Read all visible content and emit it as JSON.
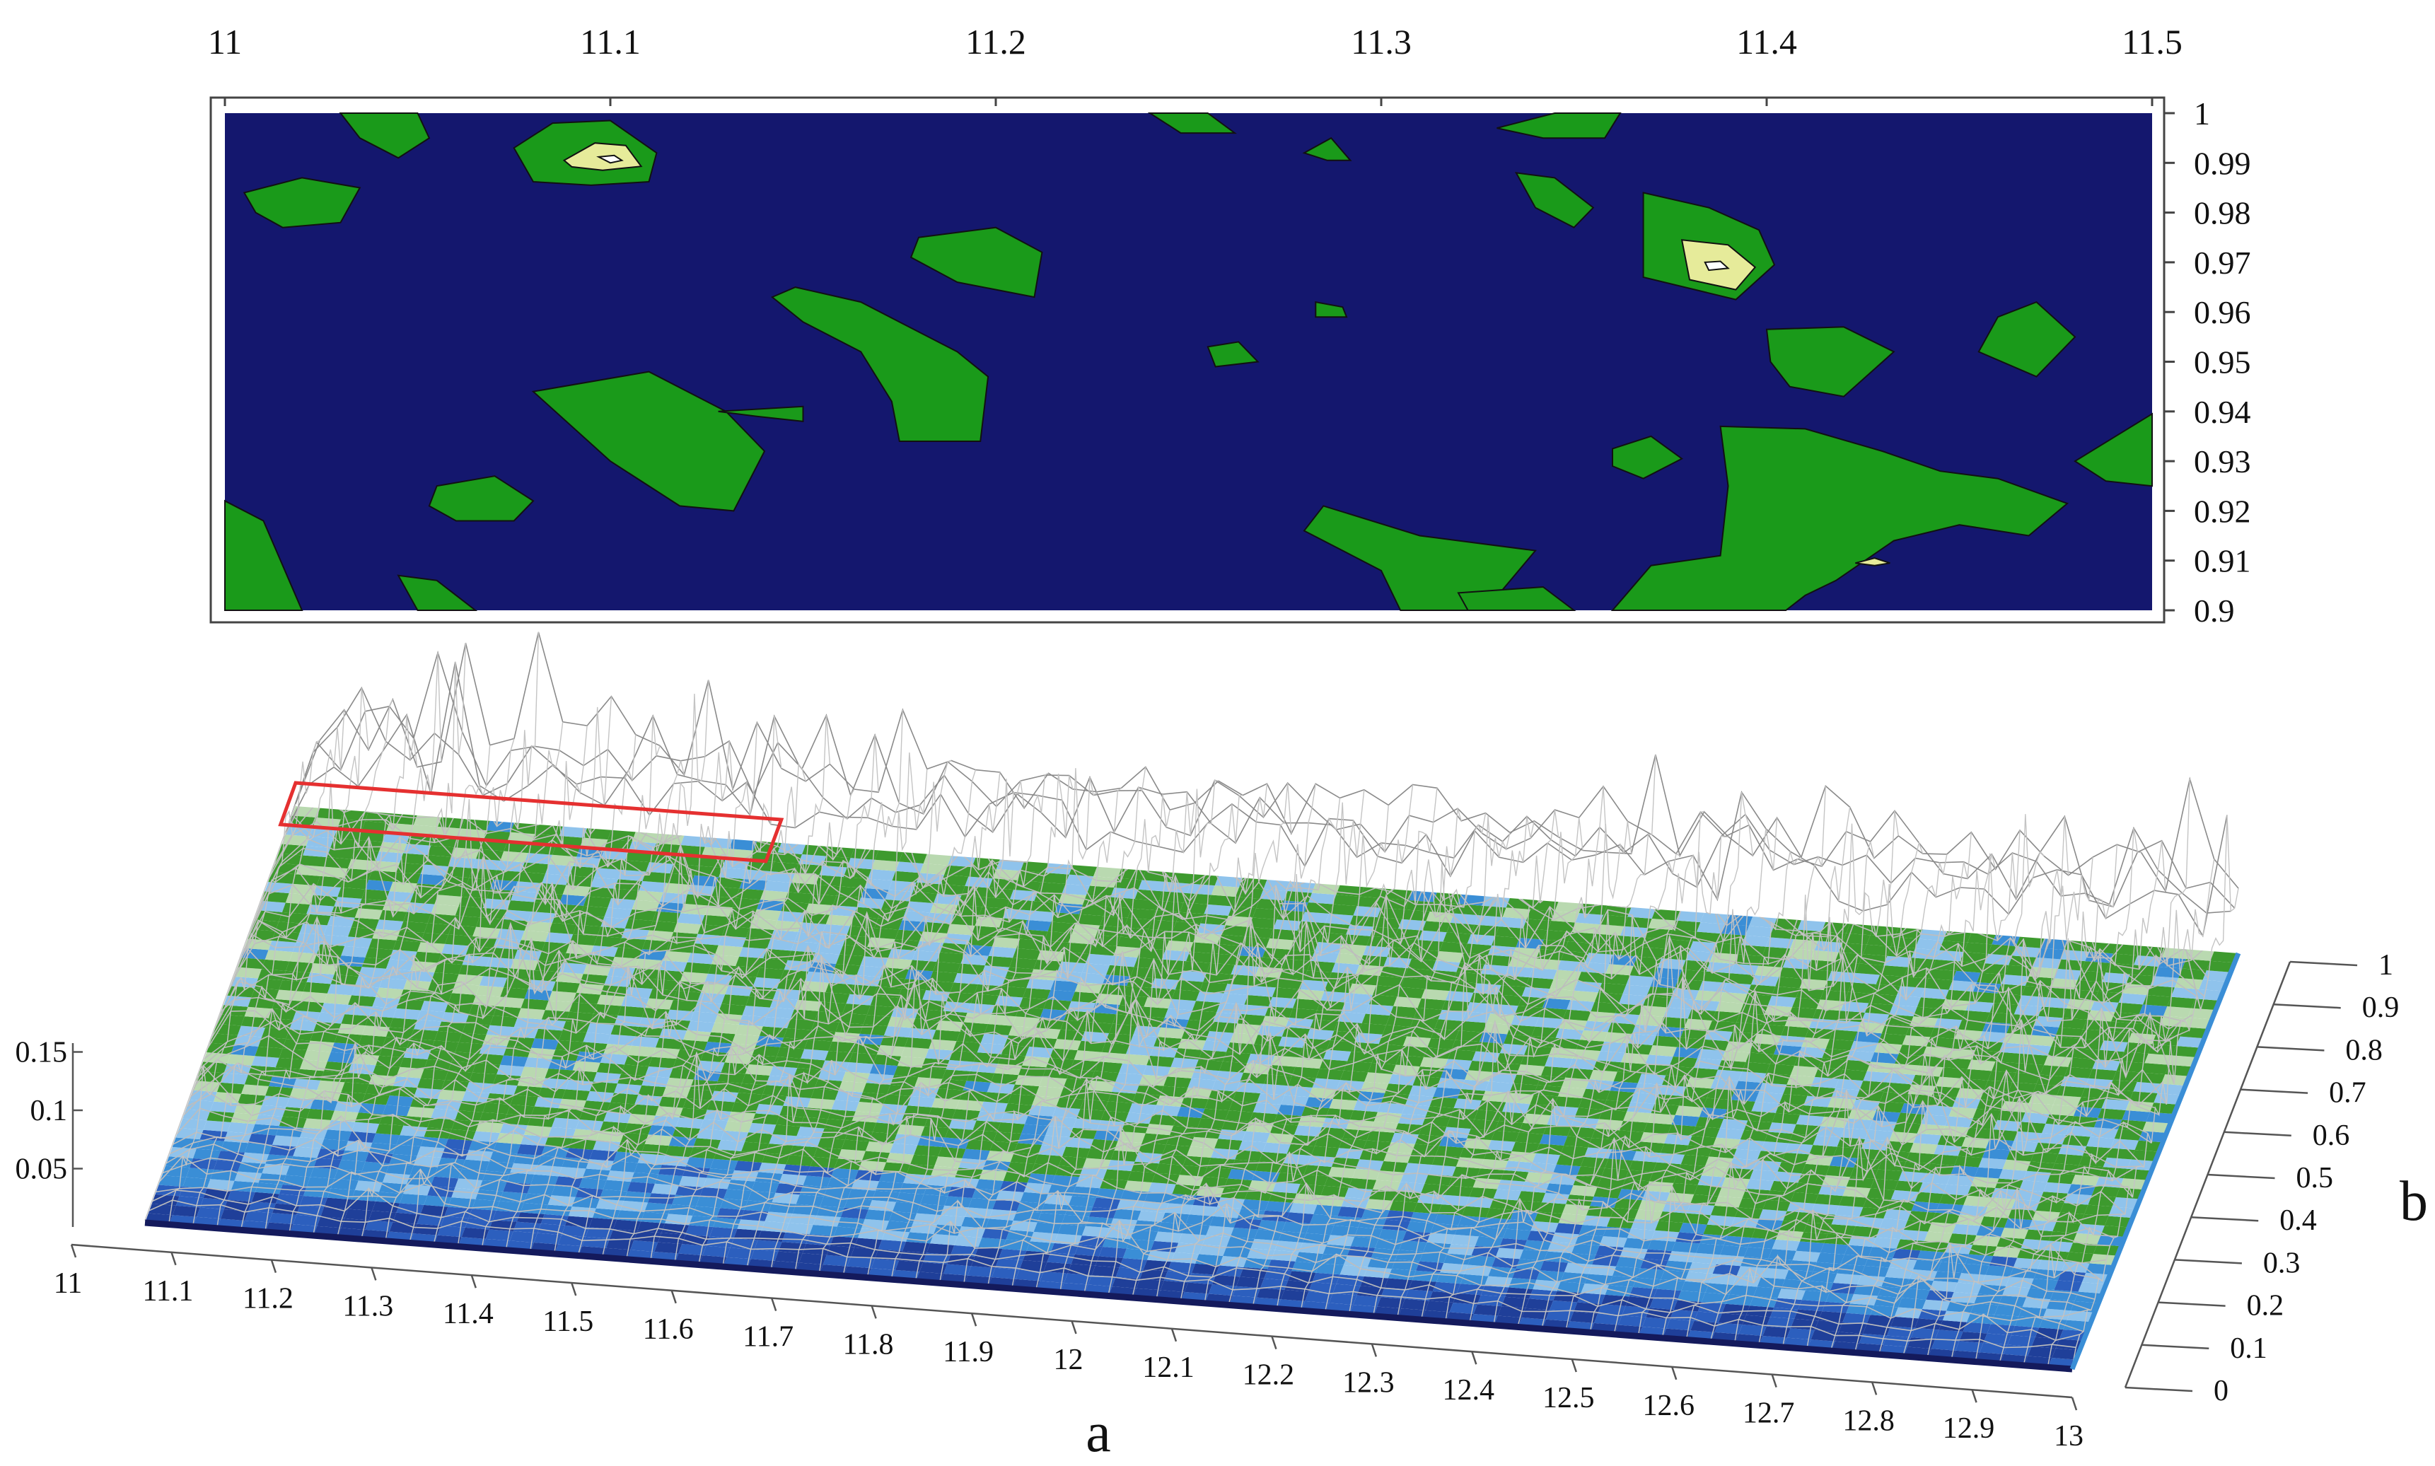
{
  "chart_data": [
    {
      "type": "heatmap",
      "subtype": "contour",
      "title": "",
      "xlabel": "",
      "ylabel": "",
      "xlim": [
        11,
        11.5
      ],
      "ylim": [
        0.9,
        1
      ],
      "x_ticks": [
        "11",
        "11.1",
        "11.2",
        "11.3",
        "11.4",
        "11.5"
      ],
      "y_ticks": [
        "1",
        "0.99",
        "0.98",
        "0.97",
        "0.96",
        "0.95",
        "0.94",
        "0.93",
        "0.92",
        "0.91",
        "0.9"
      ],
      "x_axis_position": "top",
      "y_axis_position": "right",
      "grid": false,
      "colors": {
        "background_level": "#14176e",
        "mid_level": "#1a9a1a",
        "high_level": "#e6eb9a",
        "peak_level": "#ffffff"
      },
      "regions": [
        {
          "level": "mid",
          "points": [
            [
              11.03,
              1.0
            ],
            [
              11.05,
              1.0
            ],
            [
              11.053,
              0.995
            ],
            [
              11.045,
              0.991
            ],
            [
              11.035,
              0.995
            ]
          ]
        },
        {
          "level": "mid",
          "points": [
            [
              11.075,
              0.993
            ],
            [
              11.085,
              0.998
            ],
            [
              11.1,
              0.9985
            ],
            [
              11.112,
              0.992
            ],
            [
              11.11,
              0.9862
            ],
            [
              11.095,
              0.9855
            ],
            [
              11.08,
              0.9862
            ]
          ]
        },
        {
          "level": "high",
          "points": [
            [
              11.088,
              0.9905
            ],
            [
              11.096,
              0.994
            ],
            [
              11.104,
              0.9935
            ],
            [
              11.108,
              0.9893
            ],
            [
              11.098,
              0.9885
            ],
            [
              11.09,
              0.9892
            ]
          ]
        },
        {
          "level": "peak",
          "points": [
            [
              11.097,
              0.9912
            ],
            [
              11.101,
              0.9915
            ],
            [
              11.103,
              0.9905
            ],
            [
              11.1,
              0.99
            ]
          ]
        },
        {
          "level": "mid",
          "points": [
            [
              11.005,
              0.984
            ],
            [
              11.02,
              0.987
            ],
            [
              11.035,
              0.985
            ],
            [
              11.03,
              0.978
            ],
            [
              11.015,
              0.977
            ],
            [
              11.008,
              0.98
            ]
          ]
        },
        {
          "level": "mid",
          "points": [
            [
              11.18,
              0.975
            ],
            [
              11.2,
              0.977
            ],
            [
              11.212,
              0.972
            ],
            [
              11.21,
              0.963
            ],
            [
              11.19,
              0.966
            ],
            [
              11.178,
              0.971
            ]
          ]
        },
        {
          "level": "mid",
          "points": [
            [
              11.148,
              0.965
            ],
            [
              11.165,
              0.962
            ],
            [
              11.19,
              0.952
            ],
            [
              11.198,
              0.947
            ],
            [
              11.196,
              0.934
            ],
            [
              11.175,
              0.934
            ],
            [
              11.173,
              0.942
            ],
            [
              11.165,
              0.952
            ],
            [
              11.15,
              0.958
            ],
            [
              11.142,
              0.963
            ]
          ]
        },
        {
          "level": "mid",
          "points": [
            [
              11.08,
              0.944
            ],
            [
              11.11,
              0.948
            ],
            [
              11.13,
              0.94
            ],
            [
              11.14,
              0.932
            ],
            [
              11.132,
              0.92
            ],
            [
              11.118,
              0.921
            ],
            [
              11.1,
              0.93
            ]
          ]
        },
        {
          "level": "mid",
          "points": [
            [
              11.128,
              0.94
            ],
            [
              11.15,
              0.941
            ],
            [
              11.15,
              0.938
            ],
            [
              11.138,
              0.939
            ]
          ]
        },
        {
          "level": "mid",
          "points": [
            [
              11.055,
              0.925
            ],
            [
              11.07,
              0.927
            ],
            [
              11.08,
              0.922
            ],
            [
              11.075,
              0.918
            ],
            [
              11.06,
              0.918
            ],
            [
              11.053,
              0.921
            ]
          ]
        },
        {
          "level": "mid",
          "points": [
            [
              11.0,
              0.922
            ],
            [
              11.01,
              0.918
            ],
            [
              11.02,
              0.9
            ],
            [
              11.0,
              0.9
            ]
          ]
        },
        {
          "level": "mid",
          "points": [
            [
              11.045,
              0.907
            ],
            [
              11.055,
              0.906
            ],
            [
              11.065,
              0.9
            ],
            [
              11.05,
              0.9
            ]
          ]
        },
        {
          "level": "mid",
          "points": [
            [
              11.24,
              1.0
            ],
            [
              11.255,
              1.0
            ],
            [
              11.262,
              0.996
            ],
            [
              11.248,
              0.996
            ]
          ]
        },
        {
          "level": "mid",
          "points": [
            [
              11.28,
              0.992
            ],
            [
              11.287,
              0.995
            ],
            [
              11.292,
              0.9905
            ],
            [
              11.286,
              0.9905
            ]
          ]
        },
        {
          "level": "mid",
          "points": [
            [
              11.283,
              0.962
            ],
            [
              11.29,
              0.961
            ],
            [
              11.291,
              0.959
            ],
            [
              11.283,
              0.959
            ]
          ]
        },
        {
          "level": "mid",
          "points": [
            [
              11.255,
              0.953
            ],
            [
              11.263,
              0.954
            ],
            [
              11.268,
              0.95
            ],
            [
              11.257,
              0.949
            ]
          ]
        },
        {
          "level": "mid",
          "points": [
            [
              11.285,
              0.921
            ],
            [
              11.31,
              0.915
            ],
            [
              11.34,
              0.912
            ],
            [
              11.327,
              0.9
            ],
            [
              11.305,
              0.9
            ],
            [
              11.3,
              0.908
            ],
            [
              11.28,
              0.916
            ]
          ]
        },
        {
          "level": "mid",
          "points": [
            [
              11.33,
              0.997
            ],
            [
              11.345,
              1.0
            ],
            [
              11.362,
              1.0
            ],
            [
              11.358,
              0.995
            ],
            [
              11.342,
              0.995
            ]
          ]
        },
        {
          "level": "mid",
          "points": [
            [
              11.335,
              0.988
            ],
            [
              11.345,
              0.987
            ],
            [
              11.355,
              0.981
            ],
            [
              11.35,
              0.977
            ],
            [
              11.34,
              0.981
            ]
          ]
        },
        {
          "level": "mid",
          "points": [
            [
              11.368,
              0.984
            ],
            [
              11.385,
              0.981
            ],
            [
              11.398,
              0.9765
            ],
            [
              11.402,
              0.9695
            ],
            [
              11.392,
              0.9625
            ],
            [
              11.368,
              0.967
            ]
          ]
        },
        {
          "level": "high",
          "points": [
            [
              11.378,
              0.9745
            ],
            [
              11.39,
              0.9735
            ],
            [
              11.397,
              0.969
            ],
            [
              11.392,
              0.9645
            ],
            [
              11.38,
              0.9665
            ]
          ]
        },
        {
          "level": "peak",
          "points": [
            [
              11.384,
              0.97
            ],
            [
              11.388,
              0.9702
            ],
            [
              11.39,
              0.9688
            ],
            [
              11.385,
              0.9684
            ]
          ]
        },
        {
          "level": "mid",
          "points": [
            [
              11.4,
              0.9565
            ],
            [
              11.42,
              0.957
            ],
            [
              11.433,
              0.952
            ],
            [
              11.42,
              0.943
            ],
            [
              11.406,
              0.945
            ],
            [
              11.401,
              0.95
            ]
          ]
        },
        {
          "level": "mid",
          "points": [
            [
              11.46,
              0.959
            ],
            [
              11.47,
              0.962
            ],
            [
              11.48,
              0.955
            ],
            [
              11.47,
              0.947
            ],
            [
              11.455,
              0.952
            ]
          ]
        },
        {
          "level": "mid",
          "points": [
            [
              11.36,
              0.9325
            ],
            [
              11.37,
              0.935
            ],
            [
              11.378,
              0.9305
            ],
            [
              11.368,
              0.9265
            ],
            [
              11.36,
              0.929
            ]
          ]
        },
        {
          "level": "mid",
          "points": [
            [
              11.388,
              0.937
            ],
            [
              11.41,
              0.9365
            ],
            [
              11.43,
              0.932
            ],
            [
              11.445,
              0.928
            ],
            [
              11.46,
              0.9265
            ],
            [
              11.478,
              0.9215
            ],
            [
              11.468,
              0.915
            ],
            [
              11.45,
              0.9172
            ],
            [
              11.433,
              0.914
            ],
            [
              11.418,
              0.906
            ],
            [
              11.41,
              0.903
            ],
            [
              11.405,
              0.9
            ],
            [
              11.36,
              0.9
            ],
            [
              11.37,
              0.909
            ],
            [
              11.388,
              0.911
            ],
            [
              11.39,
              0.925
            ]
          ]
        },
        {
          "level": "high",
          "points": [
            [
              11.423,
              0.9095
            ],
            [
              11.428,
              0.9105
            ],
            [
              11.432,
              0.9095
            ],
            [
              11.428,
              0.909
            ]
          ]
        },
        {
          "level": "mid",
          "points": [
            [
              11.48,
              0.93
            ],
            [
              11.5,
              0.9395
            ],
            [
              11.5,
              0.925
            ],
            [
              11.488,
              0.926
            ]
          ]
        },
        {
          "level": "mid",
          "points": [
            [
              11.32,
              0.9035
            ],
            [
              11.342,
              0.9047
            ],
            [
              11.35,
              0.9
            ],
            [
              11.3225,
              0.9
            ]
          ]
        }
      ]
    },
    {
      "type": "surface",
      "title": "",
      "xlabel": "a",
      "ylabel": "b",
      "zlabel": "",
      "xlim": [
        11,
        13
      ],
      "ylim": [
        0,
        1
      ],
      "zlim": [
        0,
        0.17
      ],
      "x_ticks": [
        "11",
        "11.1",
        "11.2",
        "11.3",
        "11.4",
        "11.5",
        "11.6",
        "11.7",
        "11.8",
        "11.9",
        "12",
        "12.1",
        "12.2",
        "12.3",
        "12.4",
        "12.5",
        "12.6",
        "12.7",
        "12.8",
        "12.9",
        "13"
      ],
      "y_ticks": [
        "0",
        "0.1",
        "0.2",
        "0.3",
        "0.4",
        "0.5",
        "0.6",
        "0.7",
        "0.8",
        "0.9",
        "1"
      ],
      "z_ticks": [
        "0.05",
        "0.1",
        "0.15"
      ],
      "grid": false,
      "colors": {
        "surface_low": "#1f3f99",
        "surface_mid": "#3a8ed6",
        "surface_light": "#8fc3ec",
        "surface_green": "#3d9a2e",
        "wireframe": "#7a7a7a",
        "highlight_box": "#e53030"
      },
      "highlight_region": {
        "x": [
          11,
          11.5
        ],
        "y": [
          0.9,
          1
        ]
      }
    }
  ]
}
